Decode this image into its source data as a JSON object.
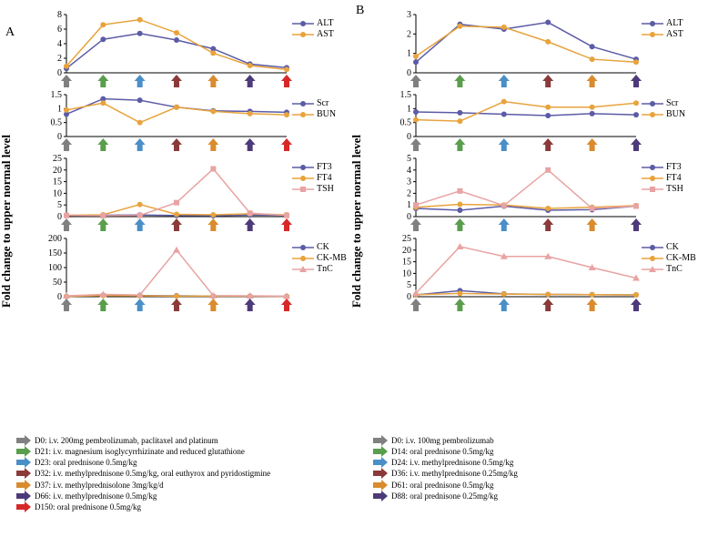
{
  "figure": {
    "ylabel": "Fold change to upper normal level",
    "ylabel_fontsize": 13,
    "colors": {
      "purple": "#5b5ba6",
      "orange": "#e8a33d",
      "pink": "#e8a3a3",
      "axis": "#000000"
    },
    "arrow_colors": {
      "gray": "#808080",
      "green": "#5a9e4d",
      "blue": "#4a8fc7",
      "maroon": "#8b3a3a",
      "orange": "#d98b2e",
      "darkpurple": "#4d3a7a",
      "red": "#d62828"
    },
    "panelA": {
      "label": "A",
      "x_categories": [
        "D0",
        "D21",
        "D23",
        "D32",
        "D37",
        "D66",
        "D150"
      ],
      "arrow_sequence": [
        "gray",
        "green",
        "blue",
        "maroon",
        "orange",
        "darkpurple",
        "red"
      ],
      "subplots": [
        {
          "ylim": [
            0,
            8
          ],
          "yticks": [
            0,
            2,
            4,
            6,
            8
          ],
          "height": 88,
          "series": [
            {
              "name": "ALT",
              "color": "#5b5ba6",
              "marker": "circle",
              "values": [
                0.6,
                4.6,
                5.4,
                4.5,
                3.3,
                1.2,
                0.7
              ]
            },
            {
              "name": "AST",
              "color": "#e8a33d",
              "marker": "circle",
              "values": [
                0.9,
                6.6,
                7.3,
                5.5,
                2.7,
                1.0,
                0.45
              ]
            }
          ]
        },
        {
          "ylim": [
            0,
            1.5
          ],
          "yticks": [
            0,
            0.5,
            1.0,
            1.5
          ],
          "height": 70,
          "series": [
            {
              "name": "Scr",
              "color": "#5b5ba6",
              "marker": "circle",
              "values": [
                0.8,
                1.35,
                1.3,
                1.05,
                0.92,
                0.9,
                0.87
              ]
            },
            {
              "name": "BUN",
              "color": "#e8a33d",
              "marker": "circle",
              "values": [
                0.95,
                1.2,
                0.5,
                1.05,
                0.9,
                0.82,
                0.78
              ]
            }
          ]
        },
        {
          "ylim": [
            0,
            25
          ],
          "yticks": [
            0,
            5,
            10,
            15,
            20,
            25
          ],
          "height": 88,
          "series": [
            {
              "name": "FT3",
              "color": "#5b5ba6",
              "marker": "circle",
              "values": [
                0.5,
                0.6,
                0.7,
                0.5,
                0.4,
                0.7,
                0.6
              ]
            },
            {
              "name": "FT4",
              "color": "#e8a33d",
              "marker": "circle",
              "values": [
                0.6,
                0.8,
                5.2,
                1.0,
                0.8,
                1.2,
                0.8
              ]
            },
            {
              "name": "TSH",
              "color": "#e8a3a3",
              "marker": "square",
              "values": [
                0.5,
                0.4,
                0.5,
                6.0,
                20.5,
                1.5,
                0.5
              ]
            }
          ]
        },
        {
          "ylim": [
            0,
            200
          ],
          "yticks": [
            0,
            50,
            100,
            150,
            200
          ],
          "height": 88,
          "series": [
            {
              "name": "CK",
              "color": "#5b5ba6",
              "marker": "circle",
              "values": [
                1,
                5,
                4,
                3,
                2,
                2,
                1
              ]
            },
            {
              "name": "CK-MB",
              "color": "#e8a33d",
              "marker": "circle",
              "values": [
                1,
                4,
                3,
                2,
                2,
                2,
                1
              ]
            },
            {
              "name": "TnC",
              "color": "#e8a3a3",
              "marker": "triangle",
              "values": [
                3,
                8,
                6,
                160,
                4,
                3,
                2
              ]
            }
          ]
        }
      ],
      "footnotes": [
        {
          "arrow": "gray",
          "text": "D0:   i.v. 200mg pembrolizumab, paclitaxel and platinum"
        },
        {
          "arrow": "green",
          "text": "D21: i.v. magnesium isoglycyrrhizinate and reduced glutathione"
        },
        {
          "arrow": "blue",
          "text": "D23: oral prednisone 0.5mg/kg"
        },
        {
          "arrow": "maroon",
          "text": "D32: i.v. methylprednisone 0.5mg/kg, oral euthyrox and pyridostigmine"
        },
        {
          "arrow": "orange",
          "text": "D37: i.v. methylprednisolone 3mg/kg/d"
        },
        {
          "arrow": "darkpurple",
          "text": "D66: i.v. methylprednisone 0.5mg/kg"
        },
        {
          "arrow": "red",
          "text": "D150: oral prednisone 0.5mg/kg"
        }
      ]
    },
    "panelB": {
      "label": "B",
      "x_categories": [
        "D0",
        "D14",
        "D24",
        "D36",
        "D61",
        "D88"
      ],
      "arrow_sequence": [
        "gray",
        "green",
        "blue",
        "maroon",
        "orange",
        "darkpurple"
      ],
      "subplots": [
        {
          "ylim": [
            0,
            3
          ],
          "yticks": [
            0,
            1,
            2,
            3
          ],
          "height": 88,
          "series": [
            {
              "name": "ALT",
              "color": "#5b5ba6",
              "marker": "circle",
              "values": [
                0.55,
                2.5,
                2.25,
                2.6,
                1.35,
                0.7
              ]
            },
            {
              "name": "AST",
              "color": "#e8a33d",
              "marker": "circle",
              "values": [
                0.85,
                2.4,
                2.35,
                1.6,
                0.7,
                0.55
              ]
            }
          ]
        },
        {
          "ylim": [
            0,
            1.5
          ],
          "yticks": [
            0,
            0.5,
            1.0,
            1.5
          ],
          "height": 70,
          "series": [
            {
              "name": "Scr",
              "color": "#5b5ba6",
              "marker": "circle",
              "values": [
                0.88,
                0.85,
                0.8,
                0.75,
                0.82,
                0.78
              ]
            },
            {
              "name": "BUN",
              "color": "#e8a33d",
              "marker": "circle",
              "values": [
                0.6,
                0.55,
                1.25,
                1.05,
                1.05,
                1.2
              ]
            }
          ]
        },
        {
          "ylim": [
            0,
            5
          ],
          "yticks": [
            0,
            1,
            2,
            3,
            4,
            5
          ],
          "height": 88,
          "series": [
            {
              "name": "FT3",
              "color": "#5b5ba6",
              "marker": "circle",
              "values": [
                0.7,
                0.55,
                0.9,
                0.55,
                0.6,
                0.9
              ]
            },
            {
              "name": "FT4",
              "color": "#e8a33d",
              "marker": "circle",
              "values": [
                0.8,
                1.05,
                1.0,
                0.7,
                0.8,
                0.95
              ]
            },
            {
              "name": "TSH",
              "color": "#e8a3a3",
              "marker": "square",
              "values": [
                1.0,
                2.2,
                0.95,
                4.0,
                0.7,
                0.9
              ]
            }
          ]
        },
        {
          "ylim": [
            0,
            25
          ],
          "yticks": [
            0,
            5,
            10,
            15,
            20,
            25
          ],
          "height": 88,
          "series": [
            {
              "name": "CK",
              "color": "#5b5ba6",
              "marker": "circle",
              "values": [
                0.8,
                2.6,
                1.2,
                1.0,
                0.9,
                0.8
              ]
            },
            {
              "name": "CK-MB",
              "color": "#e8a33d",
              "marker": "circle",
              "values": [
                0.9,
                1.4,
                1.1,
                1.0,
                0.9,
                0.8
              ]
            },
            {
              "name": "TnC",
              "color": "#e8a3a3",
              "marker": "triangle",
              "values": [
                1.5,
                21.5,
                17.3,
                17.3,
                12.5,
                8.0
              ]
            }
          ]
        }
      ],
      "footnotes": [
        {
          "arrow": "gray",
          "text": "D0:   i.v. 100mg pembrolizumab"
        },
        {
          "arrow": "green",
          "text": "D14: oral prednisone 0.5mg/kg"
        },
        {
          "arrow": "blue",
          "text": "D24: i.v. methylprednisone 0.5mg/kg"
        },
        {
          "arrow": "maroon",
          "text": "D36: i.v. methylprednisone 0.25mg/kg"
        },
        {
          "arrow": "orange",
          "text": "D61: oral prednisone 0.5mg/kg"
        },
        {
          "arrow": "darkpurple",
          "text": "D88: oral prednisone 0.25mg/kg"
        }
      ]
    }
  }
}
